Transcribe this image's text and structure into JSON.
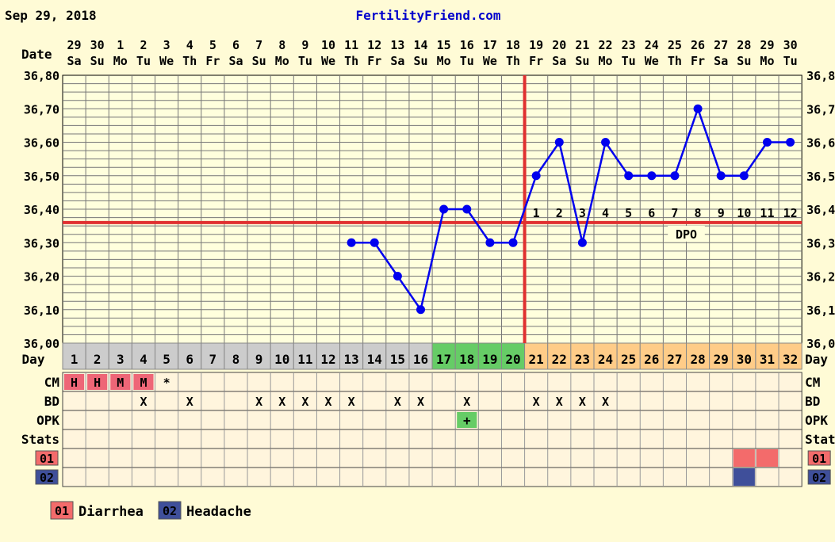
{
  "header": {
    "date": "Sep 29, 2018",
    "site": "FertilityFriend.com"
  },
  "chart_data": {
    "type": "line",
    "title": "",
    "xlabel": "Date",
    "ylabel": "",
    "ylim": [
      36.0,
      36.8
    ],
    "y_ticks": [
      "36,00",
      "36,10",
      "36,20",
      "36,30",
      "36,40",
      "36,50",
      "36,60",
      "36,70",
      "36,80"
    ],
    "y_ticks_right": [
      "36,0",
      "36,1",
      "36,2",
      "36,3",
      "36,4",
      "36,5",
      "36,6",
      "36,7",
      "36,8"
    ],
    "dates": [
      "29",
      "30",
      "1",
      "2",
      "3",
      "4",
      "5",
      "6",
      "7",
      "8",
      "9",
      "10",
      "11",
      "12",
      "13",
      "14",
      "15",
      "16",
      "17",
      "18",
      "19",
      "20",
      "21",
      "22",
      "23",
      "24",
      "25",
      "26",
      "27",
      "28",
      "29",
      "30"
    ],
    "weekdays": [
      "Sa",
      "Su",
      "Mo",
      "Tu",
      "We",
      "Th",
      "Fr",
      "Sa",
      "Su",
      "Mo",
      "Tu",
      "We",
      "Th",
      "Fr",
      "Sa",
      "Su",
      "Mo",
      "Tu",
      "We",
      "Th",
      "Fr",
      "Sa",
      "Su",
      "Mo",
      "Tu",
      "We",
      "Th",
      "Fr",
      "Sa",
      "Su",
      "Mo",
      "Tu"
    ],
    "cycle_days": [
      "1",
      "2",
      "3",
      "4",
      "5",
      "6",
      "7",
      "8",
      "9",
      "10",
      "11",
      "12",
      "13",
      "14",
      "15",
      "16",
      "17",
      "18",
      "19",
      "20",
      "21",
      "22",
      "23",
      "24",
      "25",
      "26",
      "27",
      "28",
      "29",
      "30",
      "31",
      "32"
    ],
    "day_colors": [
      "gray",
      "gray",
      "gray",
      "gray",
      "gray",
      "gray",
      "gray",
      "gray",
      "gray",
      "gray",
      "gray",
      "gray",
      "gray",
      "gray",
      "gray",
      "gray",
      "green",
      "green",
      "green",
      "green",
      "orange",
      "orange",
      "orange",
      "orange",
      "orange",
      "orange",
      "orange",
      "orange",
      "orange",
      "orange",
      "orange",
      "orange"
    ],
    "series": [
      {
        "color": "#0000ee",
        "values": [
          null,
          null,
          null,
          null,
          null,
          null,
          null,
          null,
          null,
          null,
          null,
          null,
          36.3,
          36.3,
          36.2,
          36.1,
          36.4,
          36.4,
          36.3,
          36.3,
          36.5,
          36.6,
          36.3,
          36.6,
          36.5,
          36.5,
          36.5,
          36.7,
          36.5,
          36.5,
          36.6,
          36.6
        ]
      }
    ],
    "coverline": 36.36,
    "ovulation_day": 20,
    "dpo_labels": [
      "1",
      "2",
      "3",
      "4",
      "5",
      "6",
      "7",
      "8",
      "9",
      "10",
      "11",
      "12"
    ],
    "dpo_start_day": 21,
    "dpo_text": "DPO",
    "row_labels": {
      "date": "Date",
      "day": "Day",
      "cm": "CM",
      "bd": "BD",
      "opk": "OPK",
      "stats": "Stats",
      "s01": "01",
      "s02": "02"
    },
    "cm_values": [
      "H",
      "H",
      "M",
      "M",
      "*",
      "",
      "",
      "",
      "",
      "",
      "",
      "",
      "",
      "",
      "",
      "",
      "",
      "",
      "",
      "",
      "",
      "",
      "",
      "",
      "",
      "",
      "",
      "",
      "",
      "",
      "",
      ""
    ],
    "bd_values": [
      "",
      "",
      "",
      "X",
      "",
      "X",
      "",
      "",
      "X",
      "X",
      "X",
      "X",
      "X",
      "",
      "X",
      "X",
      "",
      "X",
      "",
      "",
      "X",
      "X",
      "X",
      "X",
      "",
      "",
      "",
      "",
      "",
      "",
      "",
      ""
    ],
    "opk_values": [
      "",
      "",
      "",
      "",
      "",
      "",
      "",
      "",
      "",
      "",
      "",
      "",
      "",
      "",
      "",
      "",
      "",
      "+",
      "",
      "",
      "",
      "",
      "",
      "",
      "",
      "",
      "",
      "",
      "",
      "",
      "",
      ""
    ],
    "s01_days": [
      30,
      31
    ],
    "s02_days": [
      30
    ],
    "legend": [
      {
        "code": "01",
        "label": "Diarrhea",
        "color": "#f36b6b"
      },
      {
        "code": "02",
        "label": "Headache",
        "color": "#3f4f9a"
      }
    ],
    "grid": true,
    "colors": {
      "line": "#0000ee",
      "coverline": "#e03030",
      "ovulation": "#e03030",
      "gray": "#cccccc",
      "green": "#66cc66",
      "orange": "#ffcc88",
      "cm": "#ee6677",
      "opk": "#66cc66"
    }
  }
}
